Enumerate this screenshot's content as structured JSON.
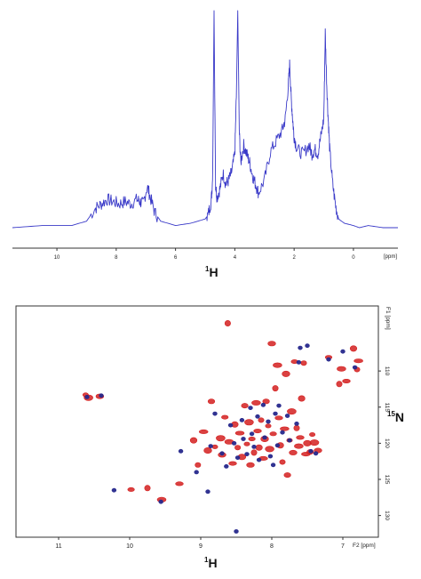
{
  "chart_data": [
    {
      "type": "line",
      "xaxis": {
        "reversed": true,
        "xlim": [
          11.5,
          -1.5
        ],
        "ticks": [
          "10",
          "8",
          "6",
          "4",
          "2",
          "0"
        ],
        "tick_values": [
          10,
          8,
          6,
          4,
          2,
          0
        ],
        "unit_label": "[ppm]"
      },
      "xlabel": {
        "sup": "1",
        "main": "H"
      },
      "color": "#3a3ac8",
      "x": [
        11.5,
        10.5,
        9.5,
        9.0,
        8.7,
        8.5,
        8.3,
        8.1,
        7.9,
        7.7,
        7.5,
        7.3,
        7.2,
        7.1,
        6.95,
        6.85,
        6.7,
        6.5,
        6.0,
        5.5,
        5.0,
        4.9,
        4.8,
        4.75,
        4.7,
        4.65,
        4.6,
        4.5,
        4.4,
        4.3,
        4.2,
        4.1,
        4.0,
        3.95,
        3.9,
        3.85,
        3.8,
        3.7,
        3.6,
        3.5,
        3.4,
        3.3,
        3.2,
        3.0,
        2.8,
        2.6,
        2.4,
        2.3,
        2.2,
        2.15,
        2.1,
        2.05,
        2.0,
        1.9,
        1.7,
        1.5,
        1.4,
        1.3,
        1.2,
        1.1,
        1.0,
        0.95,
        0.9,
        0.85,
        0.8,
        0.7,
        0.6,
        0.5,
        0.3,
        0.0,
        -0.2,
        -0.5,
        -1.0,
        -1.5
      ],
      "y": [
        0.0,
        0.01,
        0.01,
        0.03,
        0.09,
        0.11,
        0.13,
        0.12,
        0.11,
        0.12,
        0.11,
        0.13,
        0.12,
        0.11,
        0.19,
        0.14,
        0.07,
        0.03,
        0.01,
        0.02,
        0.04,
        0.06,
        0.12,
        0.22,
        1.0,
        0.2,
        0.14,
        0.18,
        0.25,
        0.2,
        0.22,
        0.26,
        0.34,
        0.6,
        1.0,
        0.45,
        0.3,
        0.38,
        0.34,
        0.3,
        0.24,
        0.2,
        0.16,
        0.22,
        0.35,
        0.4,
        0.45,
        0.5,
        0.65,
        0.75,
        0.6,
        0.5,
        0.42,
        0.36,
        0.34,
        0.38,
        0.34,
        0.36,
        0.34,
        0.42,
        0.5,
        0.9,
        0.66,
        0.5,
        0.36,
        0.2,
        0.1,
        0.04,
        0.02,
        0.01,
        0.0,
        0.01,
        0.0,
        0.0
      ]
    },
    {
      "type": "scatter",
      "xaxis": {
        "reversed": true,
        "xlim": [
          11.6,
          6.5
        ],
        "ticks": [
          "11",
          "10",
          "9",
          "8",
          "7"
        ],
        "tick_values": [
          11,
          10,
          9,
          8,
          7
        ],
        "unit_label": "F2 [ppm]"
      },
      "yaxis": {
        "reversed": true,
        "ylim": [
          101,
          133
        ],
        "ticks": [
          "110",
          "115",
          "120",
          "125",
          "130"
        ],
        "tick_values": [
          110,
          115,
          120,
          125,
          130
        ],
        "unit_label": "F1 [ppm]"
      },
      "xlabel": {
        "sup": "1",
        "main": "H"
      },
      "ylabel": {
        "sup": "15",
        "main": "N"
      },
      "series": [
        {
          "color": "#d42020",
          "points": [
            [
              10.62,
              113.3
            ],
            [
              10.58,
              113.7
            ],
            [
              10.42,
              113.5
            ],
            [
              9.98,
              126.4
            ],
            [
              9.75,
              126.2
            ],
            [
              9.55,
              127.8
            ],
            [
              9.3,
              125.6
            ],
            [
              9.1,
              119.6
            ],
            [
              9.04,
              123.0
            ],
            [
              8.96,
              118.4
            ],
            [
              8.9,
              121.0
            ],
            [
              8.85,
              114.2
            ],
            [
              8.8,
              120.5
            ],
            [
              8.72,
              119.3
            ],
            [
              8.7,
              121.6
            ],
            [
              8.66,
              116.4
            ],
            [
              8.62,
              103.4
            ],
            [
              8.6,
              119.8
            ],
            [
              8.55,
              122.8
            ],
            [
              8.52,
              117.4
            ],
            [
              8.48,
              120.6
            ],
            [
              8.45,
              118.6
            ],
            [
              8.42,
              121.9
            ],
            [
              8.38,
              114.8
            ],
            [
              8.35,
              120.1
            ],
            [
              8.32,
              117.1
            ],
            [
              8.3,
              123.0
            ],
            [
              8.28,
              119.4
            ],
            [
              8.25,
              121.3
            ],
            [
              8.22,
              114.4
            ],
            [
              8.2,
              118.3
            ],
            [
              8.18,
              120.6
            ],
            [
              8.15,
              116.8
            ],
            [
              8.12,
              122.1
            ],
            [
              8.1,
              119.4
            ],
            [
              8.08,
              114.2
            ],
            [
              8.05,
              117.6
            ],
            [
              8.03,
              120.8
            ],
            [
              8.0,
              106.2
            ],
            [
              7.98,
              118.7
            ],
            [
              7.95,
              112.4
            ],
            [
              7.92,
              109.2
            ],
            [
              7.9,
              116.5
            ],
            [
              7.88,
              120.3
            ],
            [
              7.85,
              122.6
            ],
            [
              7.82,
              118.0
            ],
            [
              7.8,
              110.4
            ],
            [
              7.78,
              124.4
            ],
            [
              7.75,
              119.6
            ],
            [
              7.72,
              115.6
            ],
            [
              7.7,
              121.3
            ],
            [
              7.68,
              108.7
            ],
            [
              7.65,
              117.9
            ],
            [
              7.62,
              120.4
            ],
            [
              7.6,
              119.2
            ],
            [
              7.58,
              113.8
            ],
            [
              7.55,
              108.9
            ],
            [
              7.52,
              121.5
            ],
            [
              7.5,
              120.0
            ],
            [
              7.46,
              121.2
            ],
            [
              7.43,
              118.8
            ],
            [
              7.4,
              119.9
            ],
            [
              7.35,
              121.0
            ],
            [
              7.2,
              108.1
            ],
            [
              7.05,
              111.8
            ],
            [
              7.02,
              109.7
            ],
            [
              6.95,
              111.4
            ],
            [
              6.85,
              106.9
            ],
            [
              6.8,
              109.8
            ],
            [
              6.78,
              108.6
            ]
          ]
        },
        {
          "color": "#26288c",
          "points": [
            [
              10.6,
              113.6
            ],
            [
              10.4,
              113.4
            ],
            [
              10.22,
              126.5
            ],
            [
              9.56,
              128.1
            ],
            [
              9.28,
              121.1
            ],
            [
              9.06,
              124.0
            ],
            [
              8.9,
              126.7
            ],
            [
              8.86,
              120.4
            ],
            [
              8.8,
              115.9
            ],
            [
              8.7,
              121.4
            ],
            [
              8.64,
              123.2
            ],
            [
              8.58,
              117.5
            ],
            [
              8.53,
              120.0
            ],
            [
              8.5,
              132.2
            ],
            [
              8.48,
              122.0
            ],
            [
              8.42,
              116.8
            ],
            [
              8.4,
              119.4
            ],
            [
              8.35,
              121.5
            ],
            [
              8.3,
              115.1
            ],
            [
              8.28,
              118.7
            ],
            [
              8.25,
              120.5
            ],
            [
              8.2,
              116.3
            ],
            [
              8.18,
              122.3
            ],
            [
              8.12,
              114.7
            ],
            [
              8.1,
              119.2
            ],
            [
              8.05,
              117.0
            ],
            [
              8.02,
              121.8
            ],
            [
              7.98,
              123.0
            ],
            [
              7.95,
              115.9
            ],
            [
              7.92,
              120.3
            ],
            [
              7.9,
              114.8
            ],
            [
              7.85,
              118.5
            ],
            [
              7.78,
              116.2
            ],
            [
              7.75,
              119.6
            ],
            [
              7.65,
              117.3
            ],
            [
              7.62,
              108.8
            ],
            [
              7.6,
              106.8
            ],
            [
              7.5,
              106.5
            ],
            [
              7.45,
              121.1
            ],
            [
              7.38,
              121.4
            ],
            [
              7.2,
              108.4
            ],
            [
              7.0,
              107.3
            ],
            [
              6.83,
              109.5
            ]
          ]
        }
      ]
    }
  ]
}
